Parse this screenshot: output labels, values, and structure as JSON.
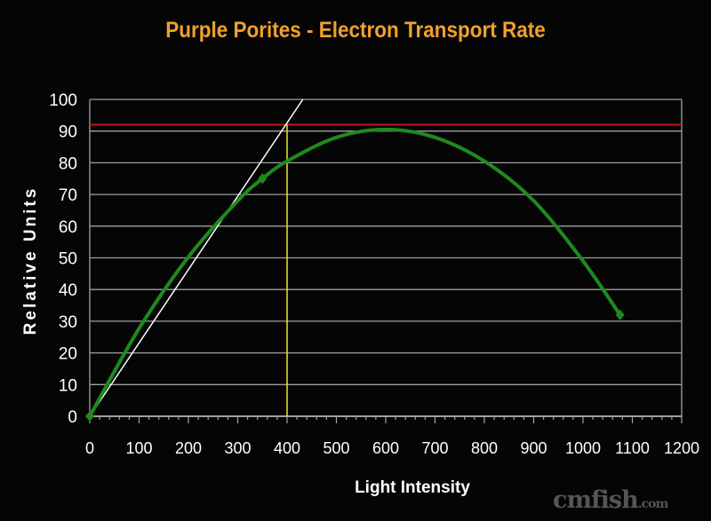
{
  "chart_data": {
    "type": "line",
    "title": "Purple Porites - Electron Transport Rate",
    "xlabel": "Light Intensity",
    "ylabel": "Relative Units",
    "xlim": [
      0,
      1200
    ],
    "ylim": [
      0,
      100
    ],
    "xticks": [
      0,
      100,
      200,
      300,
      400,
      500,
      600,
      700,
      800,
      900,
      1000,
      1100,
      1200
    ],
    "yticks": [
      0,
      10,
      20,
      30,
      40,
      50,
      60,
      70,
      80,
      90,
      100
    ],
    "grid": "horizontal",
    "series": [
      {
        "color": "#1e8a1e",
        "x": [
          0,
          100,
          200,
          300,
          350,
          400,
          500,
          600,
          700,
          800,
          900,
          1000,
          1075
        ],
        "y": [
          0,
          27.7,
          50.3,
          68,
          75,
          80.5,
          88,
          90.5,
          88,
          80.5,
          68,
          49,
          32
        ],
        "markers_at": [
          0,
          350,
          1075
        ]
      }
    ],
    "annotations": {
      "max_line": {
        "y": 92,
        "color": "#c01818"
      },
      "saturation_line": {
        "x": 400,
        "y_top": 92,
        "color": "#e8e830"
      },
      "initial_slope_line": {
        "x": [
          0,
          432
        ],
        "y": [
          0,
          100
        ],
        "color": "#ffffff"
      }
    }
  },
  "watermark": {
    "main": "cmfish",
    "suffix": ".com"
  }
}
